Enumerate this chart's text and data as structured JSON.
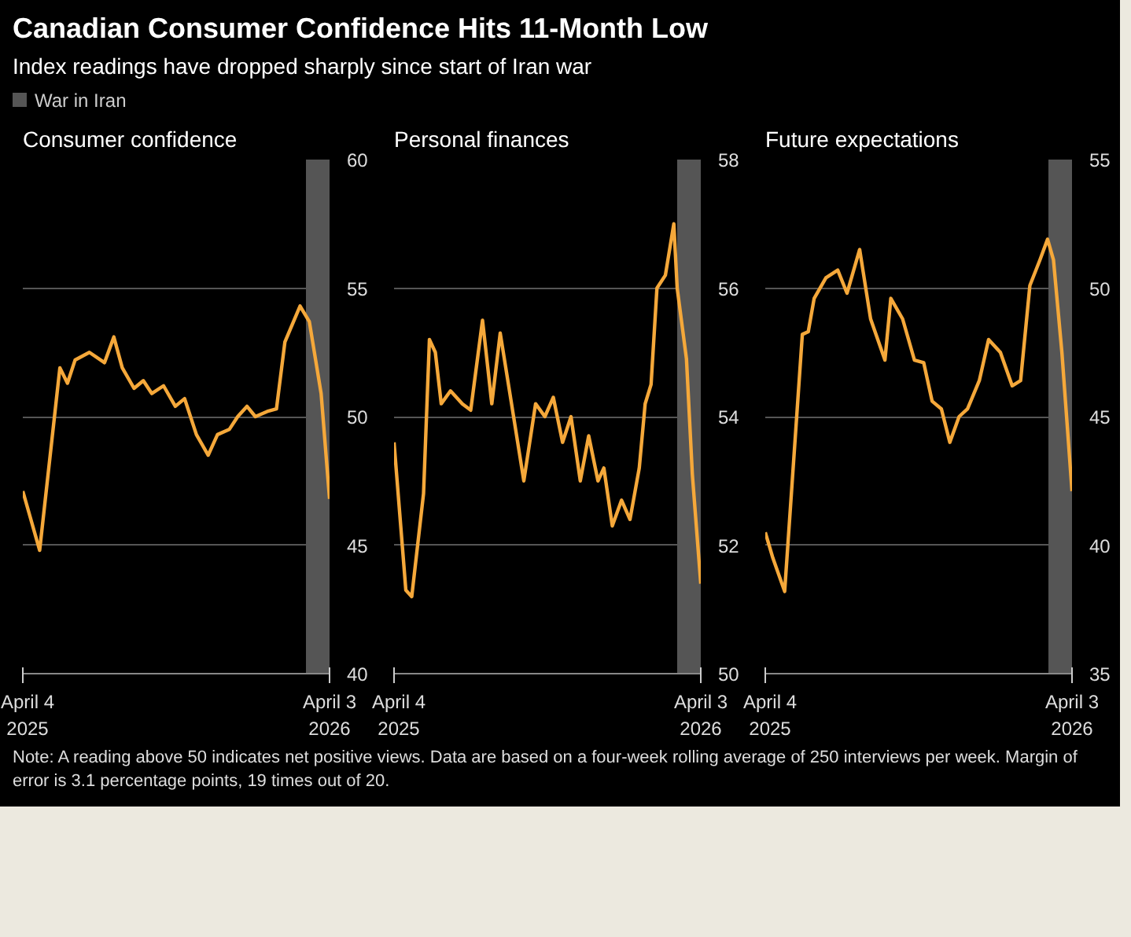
{
  "chart_data": [
    {
      "type": "line",
      "title": "Consumer confidence",
      "grid": "y",
      "xlim": [
        "2025-04-04",
        "2026-04-03"
      ],
      "xticks": [
        {
          "value": "2025-04-04",
          "label": "April 4\n2025"
        },
        {
          "value": "2026-04-03",
          "label": "April 3\n2026"
        }
      ],
      "ylim": [
        40,
        60
      ],
      "yticks": [
        40,
        45,
        50,
        55,
        60
      ],
      "bands": [
        {
          "axis": "x",
          "from": "2026-03-06",
          "to": "2026-04-03",
          "label": "War in Iran",
          "color": "#555555"
        }
      ],
      "series": [
        {
          "color": "#f5a83a",
          "x": [
            "2025-04-04",
            "2025-04-24",
            "2025-05-18",
            "2025-05-27",
            "2025-06-05",
            "2025-06-22",
            "2025-07-10",
            "2025-07-21",
            "2025-07-31",
            "2025-08-14",
            "2025-08-25",
            "2025-09-04",
            "2025-09-18",
            "2025-10-02",
            "2025-10-13",
            "2025-10-27",
            "2025-11-10",
            "2025-11-21",
            "2025-12-05",
            "2025-12-15",
            "2025-12-26",
            "2026-01-05",
            "2026-01-19",
            "2026-01-30",
            "2026-02-09",
            "2026-02-27",
            "2026-03-10",
            "2026-03-24",
            "2026-04-03"
          ],
          "values": [
            47.1,
            44.8,
            51.9,
            51.3,
            52.2,
            52.5,
            52.1,
            53.1,
            51.9,
            51.1,
            51.4,
            50.9,
            51.2,
            50.4,
            50.7,
            49.3,
            48.5,
            49.3,
            49.5,
            50.0,
            50.4,
            50.0,
            50.2,
            50.3,
            52.9,
            54.3,
            53.7,
            50.9,
            46.8
          ]
        }
      ]
    },
    {
      "type": "line",
      "title": "Personal finances",
      "grid": "y",
      "xlim": [
        "2025-04-04",
        "2026-04-03"
      ],
      "xticks": [
        {
          "value": "2025-04-04",
          "label": "April 4\n2025"
        },
        {
          "value": "2026-04-03",
          "label": "April 3\n2026"
        }
      ],
      "ylim": [
        50,
        58
      ],
      "yticks": [
        50,
        52,
        54,
        56,
        58
      ],
      "bands": [
        {
          "axis": "x",
          "from": "2026-03-06",
          "to": "2026-04-03",
          "color": "#555555"
        }
      ],
      "series": [
        {
          "color": "#f5a83a",
          "x": [
            "2025-04-04",
            "2025-04-18",
            "2025-04-25",
            "2025-05-09",
            "2025-05-16",
            "2025-05-23",
            "2025-05-30",
            "2025-06-10",
            "2025-06-24",
            "2025-07-04",
            "2025-07-18",
            "2025-07-29",
            "2025-08-08",
            "2025-08-19",
            "2025-09-05",
            "2025-09-19",
            "2025-09-30",
            "2025-10-10",
            "2025-10-21",
            "2025-10-31",
            "2025-11-11",
            "2025-11-21",
            "2025-12-02",
            "2025-12-09",
            "2025-12-19",
            "2025-12-30",
            "2026-01-09",
            "2026-01-20",
            "2026-01-27",
            "2026-02-03",
            "2026-02-10",
            "2026-02-20",
            "2026-03-02",
            "2026-03-06",
            "2026-03-17",
            "2026-03-24",
            "2026-04-03"
          ],
          "values": [
            53.6,
            51.3,
            51.2,
            52.8,
            55.2,
            55.0,
            54.2,
            54.4,
            54.2,
            54.1,
            55.5,
            54.2,
            55.3,
            54.4,
            53.0,
            54.2,
            54.0,
            54.3,
            53.6,
            54.0,
            53.0,
            53.7,
            53.0,
            53.2,
            52.3,
            52.7,
            52.4,
            53.2,
            54.2,
            54.5,
            56.0,
            56.2,
            57.0,
            56.0,
            54.9,
            53.1,
            51.4
          ]
        }
      ]
    },
    {
      "type": "line",
      "title": "Future expectations",
      "grid": "y",
      "xlim": [
        "2025-04-04",
        "2026-04-03"
      ],
      "xticks": [
        {
          "value": "2025-04-04",
          "label": "April 4\n2025"
        },
        {
          "value": "2026-04-03",
          "label": "April 3\n2026"
        }
      ],
      "ylim": [
        35,
        55
      ],
      "yticks": [
        35,
        40,
        45,
        50,
        55
      ],
      "bands": [
        {
          "axis": "x",
          "from": "2026-03-06",
          "to": "2026-04-03",
          "color": "#555555"
        }
      ],
      "series": [
        {
          "color": "#f5a83a",
          "x": [
            "2025-04-04",
            "2025-04-13",
            "2025-04-27",
            "2025-05-18",
            "2025-05-25",
            "2025-06-01",
            "2025-06-15",
            "2025-06-29",
            "2025-07-10",
            "2025-07-25",
            "2025-08-07",
            "2025-08-24",
            "2025-08-31",
            "2025-09-14",
            "2025-09-28",
            "2025-10-09",
            "2025-10-19",
            "2025-10-30",
            "2025-11-09",
            "2025-11-20",
            "2025-11-30",
            "2025-12-14",
            "2025-12-25",
            "2026-01-08",
            "2026-01-22",
            "2026-02-01",
            "2026-02-12",
            "2026-02-24",
            "2026-03-05",
            "2026-03-12",
            "2026-03-22",
            "2026-04-03"
          ],
          "values": [
            40.5,
            39.5,
            38.2,
            48.2,
            48.3,
            49.6,
            50.4,
            50.7,
            49.8,
            51.5,
            48.8,
            47.2,
            49.6,
            48.8,
            47.2,
            47.1,
            45.6,
            45.3,
            44.0,
            45.0,
            45.3,
            46.4,
            48.0,
            47.5,
            46.2,
            46.4,
            50.1,
            51.1,
            51.9,
            51.1,
            47.5,
            42.1
          ]
        }
      ]
    },
    {
      "type": "other",
      "title": "Canadian Consumer Confidence Hits 11-Month Low",
      "subtitle": "Index readings have dropped sharply since start of Iran war",
      "annotations": [
        "Note: A reading above 50 indicates net positive views. Data are based on a four-week rolling average of 250 interviews per week. Margin of error is 3.1 percentage points, 19 times out of 20."
      ]
    }
  ]
}
